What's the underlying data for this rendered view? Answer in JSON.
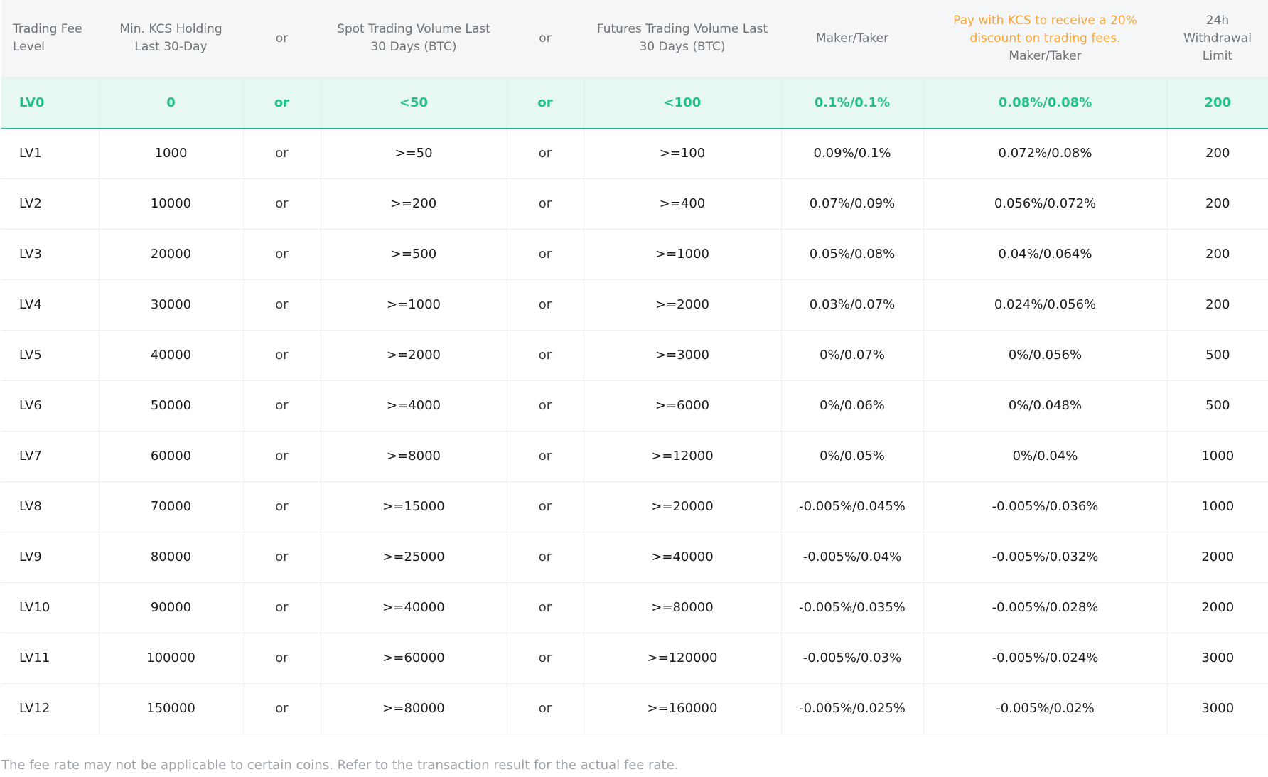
{
  "headers": {
    "level": "Trading Fee Level",
    "kcs_holding": "Min. KCS Holding Last 30-Day",
    "or_1": "or",
    "spot_volume": "Spot Trading Volume Last 30 Days (BTC)",
    "or_2": "or",
    "futures_volume": "Futures Trading Volume Last 30 Days (BTC)",
    "maker_taker": "Maker/Taker",
    "kcs_discount_promo": "Pay with KCS to receive a 20% discount on trading fees.",
    "kcs_discount_sub": "Maker/Taker",
    "withdrawal_limit": "24h Withdrawal Limit"
  },
  "rows": [
    {
      "level": "LV0",
      "kcs": "0",
      "or1": "or",
      "spot": "<50",
      "or2": "or",
      "futures": "<100",
      "fee": "0.1%/0.1%",
      "kcs_fee": "0.08%/0.08%",
      "limit": "200"
    },
    {
      "level": "LV1",
      "kcs": "1000",
      "or1": "or",
      "spot": ">=50",
      "or2": "or",
      "futures": ">=100",
      "fee": "0.09%/0.1%",
      "kcs_fee": "0.072%/0.08%",
      "limit": "200"
    },
    {
      "level": "LV2",
      "kcs": "10000",
      "or1": "or",
      "spot": ">=200",
      "or2": "or",
      "futures": ">=400",
      "fee": "0.07%/0.09%",
      "kcs_fee": "0.056%/0.072%",
      "limit": "200"
    },
    {
      "level": "LV3",
      "kcs": "20000",
      "or1": "or",
      "spot": ">=500",
      "or2": "or",
      "futures": ">=1000",
      "fee": "0.05%/0.08%",
      "kcs_fee": "0.04%/0.064%",
      "limit": "200"
    },
    {
      "level": "LV4",
      "kcs": "30000",
      "or1": "or",
      "spot": ">=1000",
      "or2": "or",
      "futures": ">=2000",
      "fee": "0.03%/0.07%",
      "kcs_fee": "0.024%/0.056%",
      "limit": "200"
    },
    {
      "level": "LV5",
      "kcs": "40000",
      "or1": "or",
      "spot": ">=2000",
      "or2": "or",
      "futures": ">=3000",
      "fee": "0%/0.07%",
      "kcs_fee": "0%/0.056%",
      "limit": "500"
    },
    {
      "level": "LV6",
      "kcs": "50000",
      "or1": "or",
      "spot": ">=4000",
      "or2": "or",
      "futures": ">=6000",
      "fee": "0%/0.06%",
      "kcs_fee": "0%/0.048%",
      "limit": "500"
    },
    {
      "level": "LV7",
      "kcs": "60000",
      "or1": "or",
      "spot": ">=8000",
      "or2": "or",
      "futures": ">=12000",
      "fee": "0%/0.05%",
      "kcs_fee": "0%/0.04%",
      "limit": "1000"
    },
    {
      "level": "LV8",
      "kcs": "70000",
      "or1": "or",
      "spot": ">=15000",
      "or2": "or",
      "futures": ">=20000",
      "fee": "-0.005%/0.045%",
      "kcs_fee": "-0.005%/0.036%",
      "limit": "1000"
    },
    {
      "level": "LV9",
      "kcs": "80000",
      "or1": "or",
      "spot": ">=25000",
      "or2": "or",
      "futures": ">=40000",
      "fee": "-0.005%/0.04%",
      "kcs_fee": "-0.005%/0.032%",
      "limit": "2000"
    },
    {
      "level": "LV10",
      "kcs": "90000",
      "or1": "or",
      "spot": ">=40000",
      "or2": "or",
      "futures": ">=80000",
      "fee": "-0.005%/0.035%",
      "kcs_fee": "-0.005%/0.028%",
      "limit": "2000"
    },
    {
      "level": "LV11",
      "kcs": "100000",
      "or1": "or",
      "spot": ">=60000",
      "or2": "or",
      "futures": ">=120000",
      "fee": "-0.005%/0.03%",
      "kcs_fee": "-0.005%/0.024%",
      "limit": "3000"
    },
    {
      "level": "LV12",
      "kcs": "150000",
      "or1": "or",
      "spot": ">=80000",
      "or2": "or",
      "futures": ">=160000",
      "fee": "-0.005%/0.025%",
      "kcs_fee": "-0.005%/0.02%",
      "limit": "3000"
    }
  ],
  "current_level_index": 0,
  "footnote": "The fee rate may not be applicable to certain coins. Refer to the transaction result for the actual fee rate.",
  "colors": {
    "highlight_text": "#23c28d",
    "highlight_bg": "#e7f8f1",
    "promo_text": "#f7a53a",
    "header_bg": "#f5f6f7",
    "footnote_text": "#9ea3a7"
  }
}
